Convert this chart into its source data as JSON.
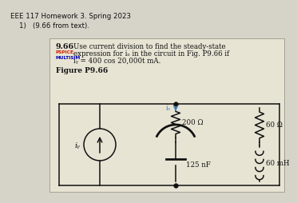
{
  "title_line1": "EEE 117 Homework 3. Spring 2023",
  "title_line2": "1)   (9.66 from text).",
  "problem_number": "9.66",
  "problem_text_line1": "Use current division to find the steady-state",
  "problem_text_line2": "expression for iₒ in the circuit in Fig. P9.66 if",
  "problem_text_line3": "iᵧ = 400 cos 20,000t mA.",
  "pspice_label": "PSPICE",
  "multisim_label": "MULTISIM",
  "figure_label": "Figure P9.66",
  "resistor1_label": "200 Ω",
  "capacitor_label": "125 nF",
  "resistor2_label": "60 Ω",
  "inductor_label": "60 mH",
  "current_source_label": "iᵧ",
  "io_label": "iₒ",
  "bg_color": "#d6d3c8",
  "paper_color": "#e8e4d4",
  "text_color": "#111111",
  "circuit_color": "#111111",
  "pspice_color": "#cc2200",
  "multisim_color": "#0000bb",
  "io_color": "#4488cc"
}
